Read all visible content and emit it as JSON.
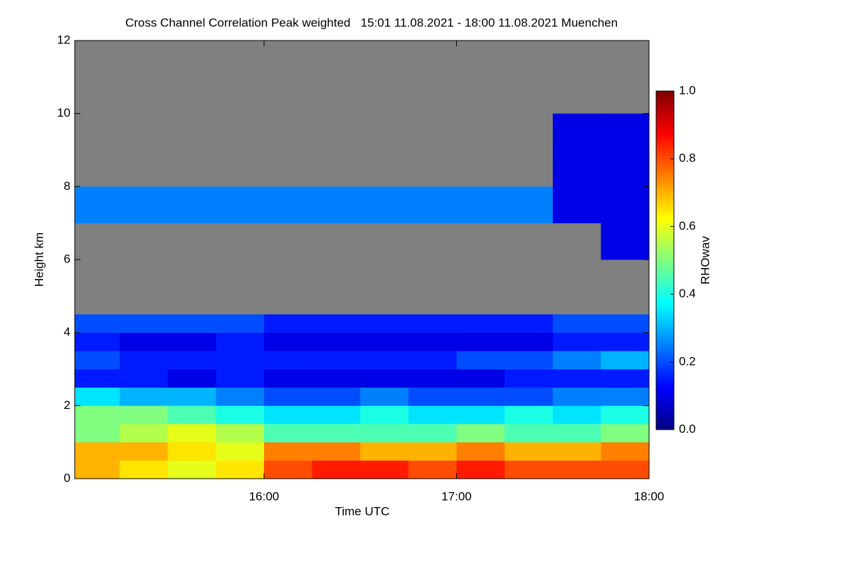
{
  "chart_data": {
    "type": "heatmap",
    "title": "Cross Channel Correlation Peak weighted   15:01 11.08.2021 - 18:00 11.08.2021 Muenchen",
    "x_label": "Time UTC",
    "y_label": "Height km",
    "colorbar_label": "RHOwav",
    "colormap": "jet",
    "background": "#808080",
    "xlim": [
      15.0167,
      18.0
    ],
    "xticks": [
      {
        "value": 16,
        "label": "16:00"
      },
      {
        "value": 17,
        "label": "17:00"
      },
      {
        "value": 18,
        "label": "18:00"
      }
    ],
    "ylim": [
      0,
      12
    ],
    "yticks": [
      0,
      2,
      4,
      6,
      8,
      10,
      12
    ],
    "zlim": [
      0,
      1
    ],
    "zticks": [
      {
        "value": 0,
        "label": "0.0"
      },
      {
        "value": 0.2,
        "label": "0.2"
      },
      {
        "value": 0.4,
        "label": "0.4"
      },
      {
        "value": 0.6,
        "label": "0.6"
      },
      {
        "value": 0.8,
        "label": "0.8"
      },
      {
        "value": 1,
        "label": "1.0"
      }
    ],
    "x_bins": [
      15.0167,
      15.25,
      15.5,
      15.75,
      16.0,
      16.25,
      16.5,
      16.75,
      17.0,
      17.25,
      17.5,
      17.75,
      18.0
    ],
    "y_bins": [
      0,
      0.5,
      1,
      1.5,
      2,
      2.5,
      3,
      3.5,
      4,
      4.5,
      6,
      7,
      8,
      9,
      10,
      12
    ],
    "z": [
      [
        0.7,
        0.65,
        0.6,
        0.65,
        0.8,
        0.85,
        0.85,
        0.8,
        0.85,
        0.8,
        0.8,
        0.8
      ],
      [
        0.7,
        0.7,
        0.65,
        0.6,
        0.75,
        0.75,
        0.7,
        0.7,
        0.75,
        0.7,
        0.7,
        0.75
      ],
      [
        0.5,
        0.55,
        0.6,
        0.55,
        0.45,
        0.45,
        0.45,
        0.45,
        0.5,
        0.45,
        0.45,
        0.5
      ],
      [
        0.5,
        0.5,
        0.45,
        0.4,
        0.35,
        0.35,
        0.4,
        0.35,
        0.35,
        0.4,
        0.35,
        0.4
      ],
      [
        0.35,
        0.3,
        0.3,
        0.25,
        0.2,
        0.2,
        0.25,
        0.2,
        0.2,
        0.2,
        0.25,
        0.25
      ],
      [
        0.15,
        0.15,
        0.1,
        0.15,
        0.1,
        0.1,
        0.1,
        0.1,
        0.1,
        0.15,
        0.15,
        0.15
      ],
      [
        0.2,
        0.15,
        0.15,
        0.15,
        0.15,
        0.15,
        0.15,
        0.15,
        0.2,
        0.2,
        0.25,
        0.3
      ],
      [
        0.15,
        0.1,
        0.1,
        0.15,
        0.1,
        0.1,
        0.1,
        0.1,
        0.1,
        0.1,
        0.15,
        0.15
      ],
      [
        0.2,
        0.2,
        0.2,
        0.2,
        0.15,
        0.15,
        0.15,
        0.15,
        0.15,
        0.15,
        0.2,
        0.2
      ],
      [
        null,
        null,
        null,
        null,
        null,
        null,
        null,
        null,
        null,
        null,
        null,
        null
      ],
      [
        null,
        null,
        null,
        null,
        null,
        null,
        null,
        null,
        null,
        null,
        null,
        0.1
      ],
      [
        0.25,
        0.25,
        0.25,
        0.25,
        0.25,
        0.25,
        0.25,
        0.25,
        0.25,
        0.25,
        0.1,
        0.1
      ],
      [
        null,
        null,
        null,
        null,
        null,
        null,
        null,
        null,
        null,
        null,
        0.1,
        0.1
      ],
      [
        null,
        null,
        null,
        null,
        null,
        null,
        null,
        null,
        null,
        null,
        0.1,
        0.1
      ],
      [
        null,
        null,
        null,
        null,
        null,
        null,
        null,
        null,
        null,
        null,
        null,
        null
      ]
    ]
  }
}
